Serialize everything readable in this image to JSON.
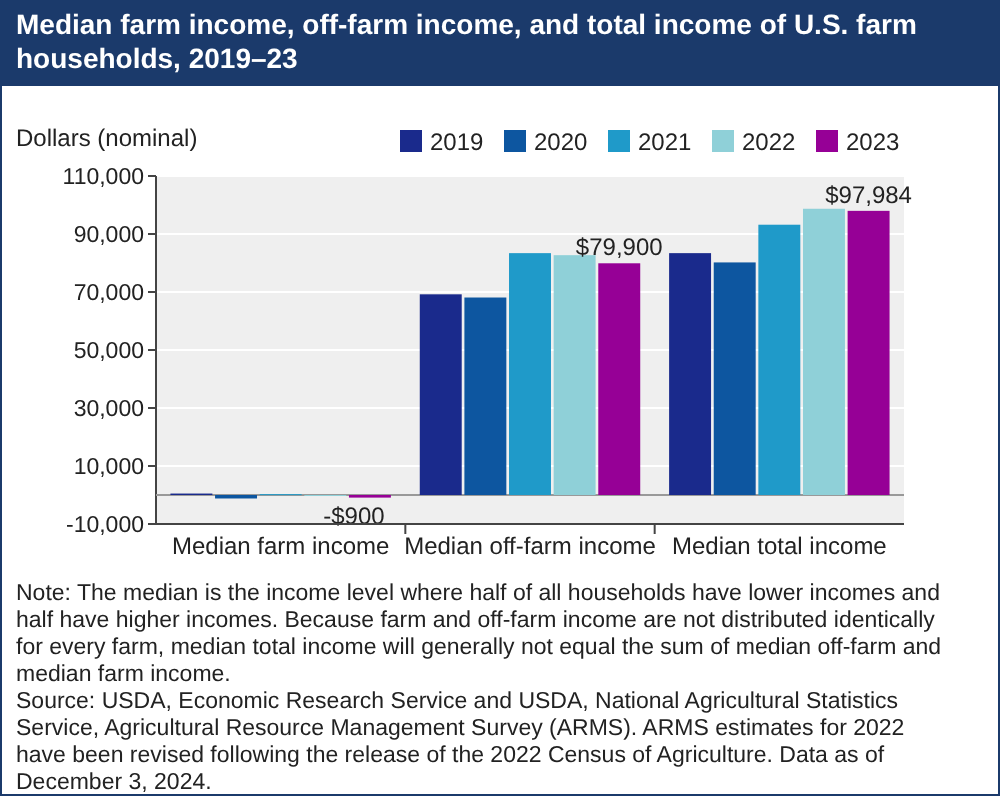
{
  "chart_data": {
    "type": "bar",
    "title": "Median farm income, off-farm income, and total income of U.S. farm households, 2019–23",
    "ylabel": "Dollars (nominal)",
    "categories": [
      "Median farm income",
      "Median off-farm income",
      "Median total income"
    ],
    "series": [
      {
        "name": "2019",
        "color": "#1a2a8c",
        "values": [
          500,
          69200,
          83400
        ]
      },
      {
        "name": "2020",
        "color": "#0d56a0",
        "values": [
          -1200,
          68100,
          80200
        ]
      },
      {
        "name": "2021",
        "color": "#1f9ac9",
        "values": [
          300,
          83400,
          93200
        ]
      },
      {
        "name": "2022",
        "color": "#8fd0d8",
        "values": [
          -300,
          82700,
          98700
        ]
      },
      {
        "name": "2023",
        "color": "#960096",
        "values": [
          -900,
          79900,
          97984
        ],
        "value_labels": [
          "-$900",
          "$79,900",
          "$97,984"
        ]
      }
    ],
    "ylim": [
      -10000,
      110000
    ],
    "yticks": [
      {
        "value": -10000,
        "label": "-10,000"
      },
      {
        "value": 10000,
        "label": "10,000"
      },
      {
        "value": 30000,
        "label": "30,000"
      },
      {
        "value": 50000,
        "label": "50,000"
      },
      {
        "value": 70000,
        "label": "70,000"
      },
      {
        "value": 90000,
        "label": "90,000"
      },
      {
        "value": 110000,
        "label": "110,000"
      }
    ],
    "grid": "y",
    "legend": "top right",
    "annotations": [
      "Note: The median is the income level where half of all households have lower incomes and half have higher incomes. Because farm and off-farm income are not distributed identically for every farm, median total income will generally not equal the sum of median off-farm and median farm income.",
      "Source: USDA, Economic Research Service and USDA, National Agricultural Statistics Service, Agricultural Resource Management Survey (ARMS). ARMS estimates for 2022 have been revised following the release of the 2022 Census of Agriculture. Data as of December 3, 2024."
    ]
  }
}
